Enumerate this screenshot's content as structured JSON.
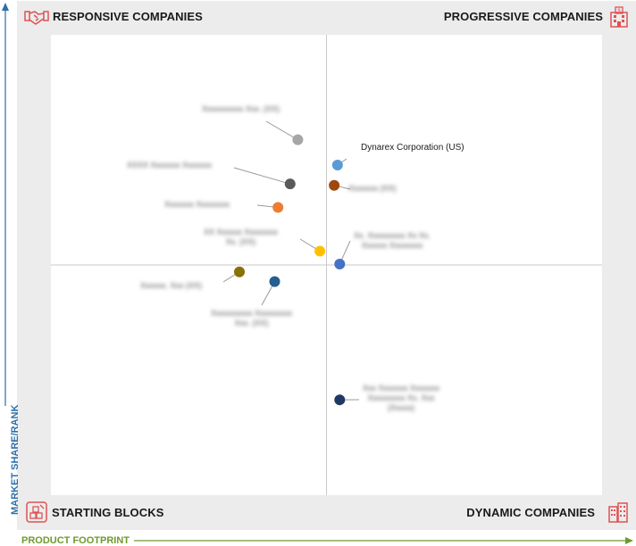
{
  "quadrants": {
    "top_left": "RESPONSIVE COMPANIES",
    "top_right": "PROGRESSIVE COMPANIES",
    "bottom_left": "STARTING BLOCKS",
    "bottom_right": "DYNAMIC COMPANIES"
  },
  "axes": {
    "y_label": "MARKET SHARE/RANK",
    "x_label": "PRODUCT FOOTPRINT"
  },
  "colors": {
    "axis_blue": "#2d6fa8",
    "axis_green": "#6e9a2c",
    "icon_red": "#e05252"
  },
  "icons": {
    "top_left": "handshake-icon",
    "top_right": "building-icon",
    "bottom_left": "blocks-icon",
    "bottom_right": "buildings-icon"
  },
  "chart_data": {
    "type": "scatter",
    "xlim": [
      0,
      100
    ],
    "ylim": [
      0,
      100
    ],
    "quadrant_split": {
      "x": 50,
      "y": 50
    },
    "points": [
      {
        "label": "",
        "x": 44.8,
        "y": 77.2,
        "color": "#a6a6a6"
      },
      {
        "label": "Dynarex Corporation (US)",
        "x": 52.0,
        "y": 71.7,
        "color": "#5b9bd5"
      },
      {
        "label": "",
        "x": 43.4,
        "y": 67.6,
        "color": "#5a5a5a"
      },
      {
        "label": "",
        "x": 51.4,
        "y": 67.3,
        "color": "#9e480e"
      },
      {
        "label": "",
        "x": 41.2,
        "y": 62.5,
        "color": "#ed7d31"
      },
      {
        "label": "",
        "x": 48.8,
        "y": 53.0,
        "color": "#ffc000"
      },
      {
        "label": "",
        "x": 52.4,
        "y": 50.2,
        "color": "#4472c4"
      },
      {
        "label": "",
        "x": 34.2,
        "y": 48.5,
        "color": "#8a7000"
      },
      {
        "label": "",
        "x": 40.6,
        "y": 46.4,
        "color": "#255e91"
      },
      {
        "label": "",
        "x": 52.4,
        "y": 20.7,
        "color": "#203864"
      }
    ]
  }
}
